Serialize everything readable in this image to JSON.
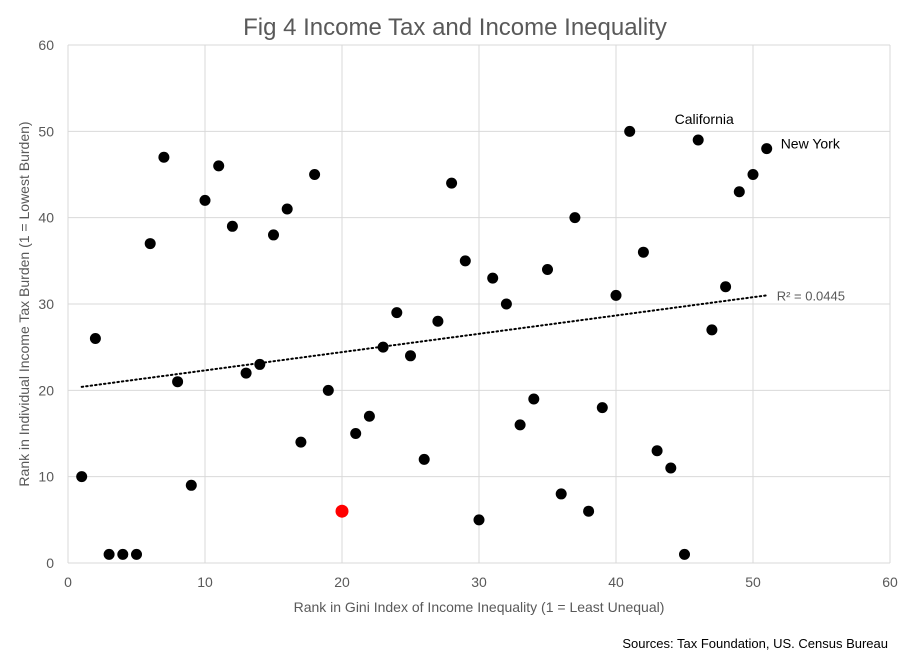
{
  "chart_data": {
    "type": "scatter",
    "title": "Fig 4 Income Tax and Income Inequality",
    "xlabel": "Rank in Gini Index of Income Inequality (1 = Least Unequal)",
    "ylabel": "Rank in Individual Income Tax Burden   (1 = Lowest Burden)",
    "xlim": [
      0,
      60
    ],
    "ylim": [
      0,
      60
    ],
    "xticks": [
      0,
      10,
      20,
      30,
      40,
      50,
      60
    ],
    "yticks": [
      0,
      10,
      20,
      30,
      40,
      50,
      60
    ],
    "grid": true,
    "marker_color": "#000000",
    "highlight_color": "#ff0000",
    "points": [
      {
        "x": 1,
        "y": 10
      },
      {
        "x": 2,
        "y": 26
      },
      {
        "x": 3,
        "y": 1
      },
      {
        "x": 4,
        "y": 1
      },
      {
        "x": 5,
        "y": 1
      },
      {
        "x": 6,
        "y": 37
      },
      {
        "x": 7,
        "y": 47
      },
      {
        "x": 8,
        "y": 21
      },
      {
        "x": 9,
        "y": 9
      },
      {
        "x": 10,
        "y": 42
      },
      {
        "x": 11,
        "y": 46
      },
      {
        "x": 12,
        "y": 39
      },
      {
        "x": 13,
        "y": 22
      },
      {
        "x": 14,
        "y": 23
      },
      {
        "x": 15,
        "y": 38
      },
      {
        "x": 16,
        "y": 41
      },
      {
        "x": 17,
        "y": 14
      },
      {
        "x": 18,
        "y": 45
      },
      {
        "x": 19,
        "y": 20
      },
      {
        "x": 20,
        "y": 6,
        "highlight": true
      },
      {
        "x": 21,
        "y": 15
      },
      {
        "x": 22,
        "y": 17
      },
      {
        "x": 23,
        "y": 25
      },
      {
        "x": 24,
        "y": 29
      },
      {
        "x": 25,
        "y": 24
      },
      {
        "x": 26,
        "y": 12
      },
      {
        "x": 27,
        "y": 28
      },
      {
        "x": 28,
        "y": 44
      },
      {
        "x": 29,
        "y": 35
      },
      {
        "x": 30,
        "y": 5
      },
      {
        "x": 31,
        "y": 33
      },
      {
        "x": 32,
        "y": 30
      },
      {
        "x": 33,
        "y": 16
      },
      {
        "x": 34,
        "y": 19
      },
      {
        "x": 35,
        "y": 34
      },
      {
        "x": 36,
        "y": 8
      },
      {
        "x": 37,
        "y": 40
      },
      {
        "x": 38,
        "y": 6
      },
      {
        "x": 39,
        "y": 18
      },
      {
        "x": 40,
        "y": 31
      },
      {
        "x": 41,
        "y": 50
      },
      {
        "x": 42,
        "y": 36
      },
      {
        "x": 43,
        "y": 13
      },
      {
        "x": 44,
        "y": 11
      },
      {
        "x": 45,
        "y": 1
      },
      {
        "x": 46,
        "y": 49
      },
      {
        "x": 47,
        "y": 27
      },
      {
        "x": 48,
        "y": 32
      },
      {
        "x": 49,
        "y": 43
      },
      {
        "x": 50,
        "y": 45
      },
      {
        "x": 51,
        "y": 48
      }
    ],
    "trendline": {
      "style": "dotted",
      "from": {
        "x": 1,
        "y": 20.4
      },
      "to": {
        "x": 51,
        "y": 31.0
      },
      "label": "R² = 0.0445"
    },
    "annotations": [
      {
        "text": "California",
        "x": 46,
        "y": 49
      },
      {
        "text": "New York",
        "x": 51,
        "y": 48
      }
    ],
    "source": "Sources: Tax Foundation, US. Census Bureau"
  }
}
